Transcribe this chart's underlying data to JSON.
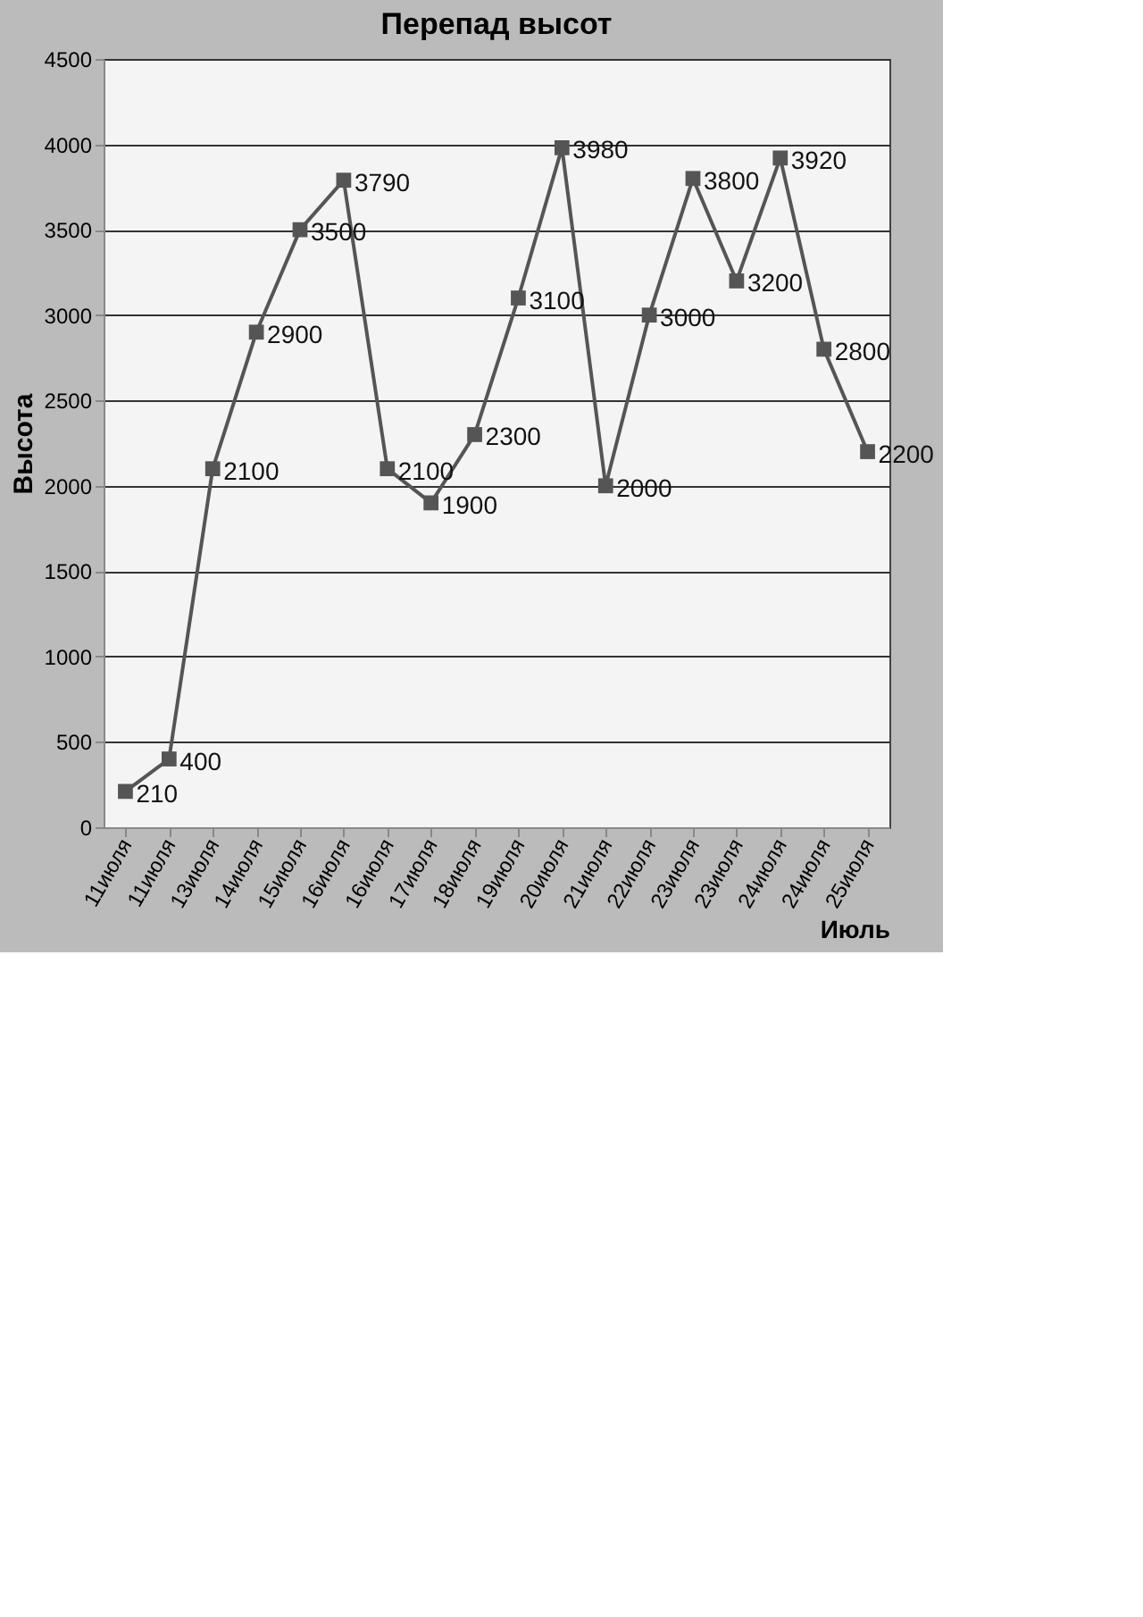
{
  "chart_data": {
    "type": "line",
    "title": "Перепад высот",
    "xlabel": "Июль",
    "ylabel": "Высота",
    "categories": [
      "11июля",
      "11июля",
      "13июля",
      "14июля",
      "15июля",
      "16июля",
      "16июля",
      "17июля",
      "18июля",
      "19июля",
      "20июля",
      "21июля",
      "22июля",
      "23июля",
      "23июля",
      "24июля",
      "24июля",
      "25июля"
    ],
    "series": [
      {
        "color": "#555555",
        "values": [
          210,
          400,
          2100,
          2900,
          3500,
          3790,
          2100,
          1900,
          2300,
          3100,
          3980,
          2000,
          3000,
          3800,
          3200,
          3920,
          2800,
          2200
        ]
      }
    ],
    "ylim": [
      0,
      4500
    ],
    "yticks": [
      0,
      500,
      1000,
      1500,
      2000,
      2500,
      3000,
      3500,
      4000,
      4500
    ],
    "grid": "y",
    "marker": "square",
    "line_style": "solid",
    "data_labels": true
  }
}
